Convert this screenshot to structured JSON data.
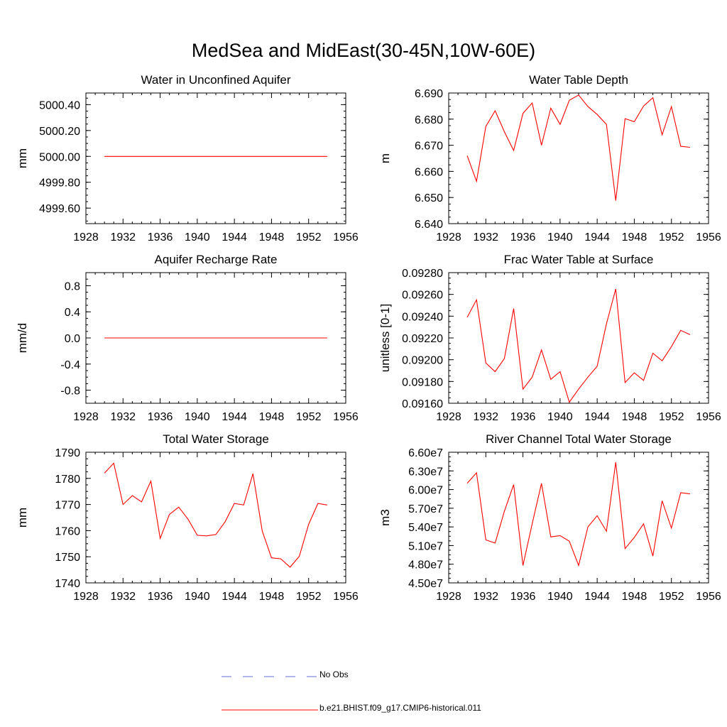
{
  "title": "MedSea and MidEast(30-45N,10W-60E)",
  "colors": {
    "model": "#ff0000",
    "obs": "#6a6ad8"
  },
  "legend": {
    "obs_label": "No Obs",
    "model_label": "b.e21.BHIST.f09_g17.CMIP6-historical.011"
  },
  "chart_data": [
    {
      "type": "line",
      "title": "Water in Unconfined Aquifer",
      "ylabel": "mm",
      "xlim": [
        1928,
        1956
      ],
      "xticks": [
        1928,
        1932,
        1936,
        1940,
        1944,
        1948,
        1952,
        1956
      ],
      "ylim": [
        4999.48,
        5000.49
      ],
      "yticks": [
        4999.6,
        4999.8,
        5000.0,
        5000.2,
        5000.4
      ],
      "ytick_labels": [
        "4999.60",
        "4999.80",
        "5000.00",
        "5000.20",
        "5000.40"
      ],
      "x": [
        1930,
        1931,
        1932,
        1933,
        1934,
        1935,
        1936,
        1937,
        1938,
        1939,
        1940,
        1941,
        1942,
        1943,
        1944,
        1945,
        1946,
        1947,
        1948,
        1949,
        1950,
        1951,
        1952,
        1953,
        1954
      ],
      "series": [
        {
          "values": [
            5000.0,
            5000.0,
            5000.0,
            5000.0,
            5000.0,
            5000.0,
            5000.0,
            5000.0,
            5000.0,
            5000.0,
            5000.0,
            5000.0,
            5000.0,
            5000.0,
            5000.0,
            5000.0,
            5000.0,
            5000.0,
            5000.0,
            5000.0,
            5000.0,
            5000.0,
            5000.0,
            5000.0,
            5000.0
          ]
        }
      ]
    },
    {
      "type": "line",
      "title": "Water Table Depth",
      "ylabel": "m",
      "xlim": [
        1928,
        1956
      ],
      "xticks": [
        1928,
        1932,
        1936,
        1940,
        1944,
        1948,
        1952,
        1956
      ],
      "ylim": [
        6.64,
        6.69
      ],
      "yticks": [
        6.64,
        6.65,
        6.66,
        6.67,
        6.68,
        6.69
      ],
      "ytick_labels": [
        "6.640",
        "6.650",
        "6.660",
        "6.670",
        "6.680",
        "6.690"
      ],
      "x": [
        1930,
        1931,
        1932,
        1933,
        1934,
        1935,
        1936,
        1937,
        1938,
        1939,
        1940,
        1941,
        1942,
        1943,
        1944,
        1945,
        1946,
        1947,
        1948,
        1949,
        1950,
        1951,
        1952,
        1953,
        1954
      ],
      "series": [
        {
          "values": [
            6.666,
            6.6562,
            6.6772,
            6.6832,
            6.6752,
            6.668,
            6.6822,
            6.6862,
            6.67,
            6.6842,
            6.678,
            6.6872,
            6.6892,
            6.6848,
            6.6818,
            6.678,
            6.6488,
            6.6802,
            6.679,
            6.685,
            6.6882,
            6.674,
            6.6848,
            6.6696,
            6.6692
          ]
        }
      ]
    },
    {
      "type": "line",
      "title": "Aquifer Recharge Rate",
      "ylabel": "mm/d",
      "xlim": [
        1928,
        1956
      ],
      "xticks": [
        1928,
        1932,
        1936,
        1940,
        1944,
        1948,
        1952,
        1956
      ],
      "ylim": [
        -1.0,
        1.0
      ],
      "yticks": [
        -0.8,
        -0.4,
        0.0,
        0.4,
        0.8
      ],
      "ytick_labels": [
        "-0.8",
        "-0.4",
        "0.0",
        "0.4",
        "0.8"
      ],
      "x": [
        1930,
        1931,
        1932,
        1933,
        1934,
        1935,
        1936,
        1937,
        1938,
        1939,
        1940,
        1941,
        1942,
        1943,
        1944,
        1945,
        1946,
        1947,
        1948,
        1949,
        1950,
        1951,
        1952,
        1953,
        1954
      ],
      "series": [
        {
          "values": [
            0.0,
            0.0,
            0.0,
            0.0,
            0.0,
            0.0,
            0.0,
            0.0,
            0.0,
            0.0,
            0.0,
            0.0,
            0.0,
            0.0,
            0.0,
            0.0,
            0.0,
            0.0,
            0.0,
            0.0,
            0.0,
            0.0,
            0.0,
            0.0,
            0.0
          ]
        }
      ]
    },
    {
      "type": "line",
      "title": "Frac Water Table at Surface",
      "ylabel": "unitless [0-1]",
      "xlim": [
        1928,
        1956
      ],
      "xticks": [
        1928,
        1932,
        1936,
        1940,
        1944,
        1948,
        1952,
        1956
      ],
      "ylim": [
        0.0916,
        0.0928
      ],
      "yticks": [
        0.0916,
        0.0918,
        0.092,
        0.0922,
        0.0924,
        0.0926,
        0.0928
      ],
      "ytick_labels": [
        "0.09160",
        "0.09180",
        "0.09200",
        "0.09220",
        "0.09240",
        "0.09260",
        "0.09280"
      ],
      "x": [
        1930,
        1931,
        1932,
        1933,
        1934,
        1935,
        1936,
        1937,
        1938,
        1939,
        1940,
        1941,
        1942,
        1943,
        1944,
        1945,
        1946,
        1947,
        1948,
        1949,
        1950,
        1951,
        1952,
        1953,
        1954
      ],
      "series": [
        {
          "values": [
            0.09239,
            0.09255,
            0.09197,
            0.09189,
            0.09201,
            0.09247,
            0.09173,
            0.09184,
            0.09209,
            0.09182,
            0.09189,
            0.09161,
            0.09173,
            0.09184,
            0.09194,
            0.09233,
            0.09265,
            0.09179,
            0.09188,
            0.09181,
            0.09206,
            0.09199,
            0.09212,
            0.09227,
            0.09223
          ]
        }
      ]
    },
    {
      "type": "line",
      "title": "Total Water Storage",
      "ylabel": "mm",
      "xlim": [
        1928,
        1956
      ],
      "xticks": [
        1928,
        1932,
        1936,
        1940,
        1944,
        1948,
        1952,
        1956
      ],
      "ylim": [
        1740,
        1790
      ],
      "yticks": [
        1740,
        1750,
        1760,
        1770,
        1780,
        1790
      ],
      "ytick_labels": [
        "1740",
        "1750",
        "1760",
        "1770",
        "1780",
        "1790"
      ],
      "x": [
        1930,
        1931,
        1932,
        1933,
        1934,
        1935,
        1936,
        1937,
        1938,
        1939,
        1940,
        1941,
        1942,
        1943,
        1944,
        1945,
        1946,
        1947,
        1948,
        1949,
        1950,
        1951,
        1952,
        1953,
        1954
      ],
      "series": [
        {
          "values": [
            1782,
            1785.8,
            1770,
            1773.4,
            1771,
            1779,
            1757,
            1766.2,
            1769,
            1764.4,
            1758.2,
            1758,
            1758.5,
            1763.4,
            1770.4,
            1769.8,
            1781.8,
            1759.8,
            1749.6,
            1749.2,
            1746,
            1750.2,
            1762.4,
            1770.4,
            1769.8
          ]
        }
      ]
    },
    {
      "type": "line",
      "title": "River Channel Total Water Storage",
      "ylabel": "m3",
      "xlim": [
        1928,
        1956
      ],
      "xticks": [
        1928,
        1932,
        1936,
        1940,
        1944,
        1948,
        1952,
        1956
      ],
      "ylim": [
        45000000,
        66000000
      ],
      "yticks": [
        45000000,
        48000000,
        51000000,
        54000000,
        57000000,
        60000000,
        63000000,
        66000000
      ],
      "ytick_labels": [
        "4.50e7",
        "4.80e7",
        "5.10e7",
        "5.40e7",
        "5.70e7",
        "6.00e7",
        "6.30e7",
        "6.60e7"
      ],
      "x": [
        1930,
        1931,
        1932,
        1933,
        1934,
        1935,
        1936,
        1937,
        1938,
        1939,
        1940,
        1941,
        1942,
        1943,
        1944,
        1945,
        1946,
        1947,
        1948,
        1949,
        1950,
        1951,
        1952,
        1953,
        1954
      ],
      "series": [
        {
          "values": [
            61000000,
            62700000,
            51900000,
            51400000,
            56500000,
            60800000,
            47800000,
            54500000,
            61000000,
            52400000,
            52600000,
            51700000,
            47800000,
            54000000,
            55800000,
            53300000,
            64400000,
            50500000,
            52300000,
            54500000,
            49300000,
            58200000,
            53800000,
            59500000,
            59300000
          ]
        }
      ]
    }
  ]
}
